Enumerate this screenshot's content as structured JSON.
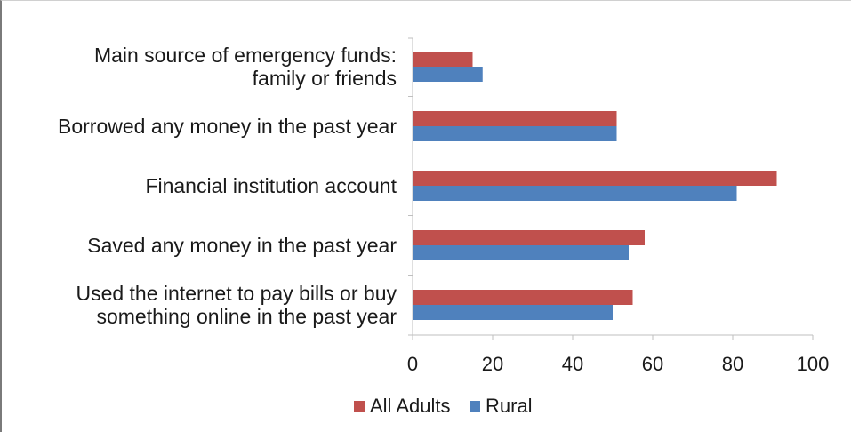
{
  "chart_data": {
    "type": "bar",
    "orientation": "horizontal",
    "categories": [
      [
        "Main source of emergency funds:",
        "family or friends"
      ],
      [
        "Borrowed any money in the past year"
      ],
      [
        "Financial institution account"
      ],
      [
        "Saved any money in the past year"
      ],
      [
        "Used the internet to pay bills or buy",
        "something online in the past year"
      ]
    ],
    "series": [
      {
        "name": "All Adults",
        "color": "#C0504D",
        "values": [
          15,
          51,
          91,
          58,
          55
        ]
      },
      {
        "name": "Rural",
        "color": "#4F81BD",
        "values": [
          17.5,
          51,
          81,
          54,
          50
        ]
      }
    ],
    "xlim": [
      0,
      100
    ],
    "xticks": [
      0,
      20,
      40,
      60,
      80,
      100
    ],
    "title": "",
    "xlabel": "",
    "ylabel": "",
    "grid": false,
    "legend": "bottom-center"
  }
}
